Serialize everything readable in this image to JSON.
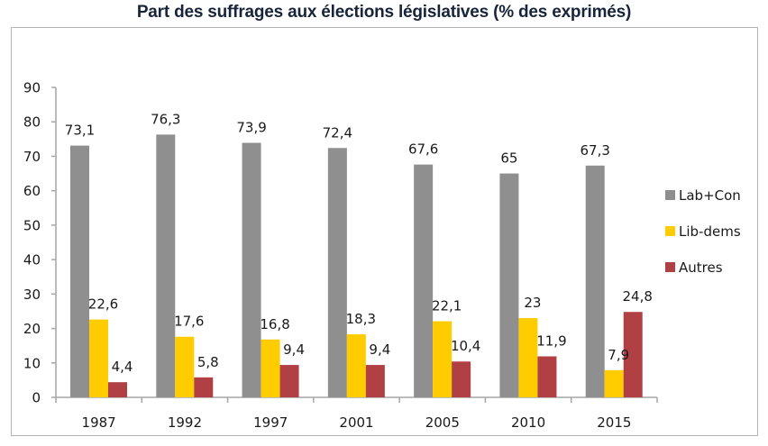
{
  "chart_data": {
    "type": "bar",
    "title": "Part des suffrages aux élections législatives (% des exprimés)",
    "xlabel": "",
    "ylabel": "",
    "categories": [
      "1987",
      "1992",
      "1997",
      "2001",
      "2005",
      "2010",
      "2015"
    ],
    "series": [
      {
        "name": "Lab+Con",
        "color": "#8f8f8f",
        "values": [
          73.1,
          76.3,
          73.9,
          72.4,
          67.6,
          65,
          67.3
        ],
        "labels": [
          "73,1",
          "76,3",
          "73,9",
          "72,4",
          "67,6",
          "65",
          "67,3"
        ]
      },
      {
        "name": "Lib-dems",
        "color": "#ffcc00",
        "values": [
          22.6,
          17.6,
          16.8,
          18.3,
          22.1,
          23,
          7.9
        ],
        "labels": [
          "22,6",
          "17,6",
          "16,8",
          "18,3",
          "22,1",
          "23",
          "7,9"
        ]
      },
      {
        "name": "Autres",
        "color": "#b04044",
        "values": [
          4.4,
          5.8,
          9.4,
          9.4,
          10.4,
          11.9,
          24.8
        ],
        "labels": [
          "4,4",
          "5,8",
          "9,4",
          "9,4",
          "10,4",
          "11,9",
          "24,8"
        ]
      }
    ],
    "ylim": [
      0,
      90
    ],
    "yticks": [
      0,
      10,
      20,
      30,
      40,
      50,
      60,
      70,
      80,
      90
    ],
    "grid": false,
    "legend_position": "right"
  }
}
